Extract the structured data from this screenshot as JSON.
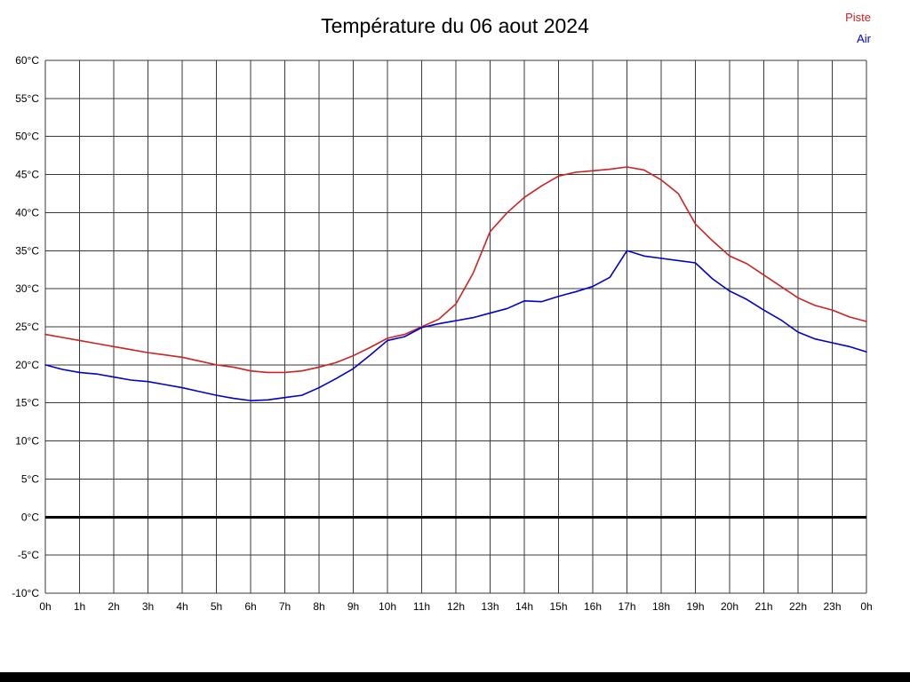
{
  "header": {
    "title": "Température du 06 aout 2024"
  },
  "legend": {
    "items": [
      {
        "label": "Piste",
        "color": "#cc2222"
      },
      {
        "label": "Air",
        "color": "#0000cc"
      }
    ]
  },
  "chart_data": {
    "type": "line",
    "title": "Température du 06 aout 2024",
    "xlabel": "",
    "ylabel": "",
    "xlim": [
      0,
      24
    ],
    "ylim": [
      -10,
      60
    ],
    "grid": true,
    "legend_position": "top-right",
    "zero_line": {
      "value": 0,
      "color": "#000000",
      "width": 3
    },
    "x_ticks": [
      {
        "v": 0,
        "label": "0h"
      },
      {
        "v": 1,
        "label": "1h"
      },
      {
        "v": 2,
        "label": "2h"
      },
      {
        "v": 3,
        "label": "3h"
      },
      {
        "v": 4,
        "label": "4h"
      },
      {
        "v": 5,
        "label": "5h"
      },
      {
        "v": 6,
        "label": "6h"
      },
      {
        "v": 7,
        "label": "7h"
      },
      {
        "v": 8,
        "label": "8h"
      },
      {
        "v": 9,
        "label": "9h"
      },
      {
        "v": 10,
        "label": "10h"
      },
      {
        "v": 11,
        "label": "11h"
      },
      {
        "v": 12,
        "label": "12h"
      },
      {
        "v": 13,
        "label": "13h"
      },
      {
        "v": 14,
        "label": "14h"
      },
      {
        "v": 15,
        "label": "15h"
      },
      {
        "v": 16,
        "label": "16h"
      },
      {
        "v": 17,
        "label": "17h"
      },
      {
        "v": 18,
        "label": "18h"
      },
      {
        "v": 19,
        "label": "19h"
      },
      {
        "v": 20,
        "label": "20h"
      },
      {
        "v": 21,
        "label": "21h"
      },
      {
        "v": 22,
        "label": "22h"
      },
      {
        "v": 23,
        "label": "23h"
      },
      {
        "v": 24,
        "label": "0h"
      }
    ],
    "y_ticks": [
      {
        "v": 60,
        "label": "60°C"
      },
      {
        "v": 55,
        "label": "55°C"
      },
      {
        "v": 50,
        "label": "50°C"
      },
      {
        "v": 45,
        "label": "45°C"
      },
      {
        "v": 40,
        "label": "40°C"
      },
      {
        "v": 35,
        "label": "35°C"
      },
      {
        "v": 30,
        "label": "30°C"
      },
      {
        "v": 25,
        "label": "25°C"
      },
      {
        "v": 20,
        "label": "20°C"
      },
      {
        "v": 15,
        "label": "15°C"
      },
      {
        "v": 10,
        "label": "10°C"
      },
      {
        "v": 5,
        "label": "5°C"
      },
      {
        "v": 0,
        "label": "0°C"
      },
      {
        "v": -5,
        "label": "-5°C"
      },
      {
        "v": -10,
        "label": "-10°C"
      }
    ],
    "x": [
      0,
      0.5,
      1,
      1.5,
      2,
      2.5,
      3,
      3.5,
      4,
      4.5,
      5,
      5.5,
      6,
      6.5,
      7,
      7.5,
      8,
      8.5,
      9,
      9.5,
      10,
      10.5,
      11,
      11.5,
      12,
      12.5,
      13,
      13.5,
      14,
      14.5,
      15,
      15.5,
      16,
      16.5,
      17,
      17.5,
      18,
      18.5,
      19,
      19.5,
      20,
      20.5,
      21,
      21.5,
      22,
      22.5,
      23,
      23.5,
      24
    ],
    "series": [
      {
        "name": "Piste",
        "color": "#cc2222",
        "values": [
          24.0,
          23.6,
          23.2,
          22.8,
          22.4,
          22.0,
          21.6,
          21.3,
          21.0,
          20.5,
          20.0,
          19.7,
          19.2,
          19.0,
          19.0,
          19.2,
          19.7,
          20.3,
          21.2,
          22.3,
          23.5,
          24.0,
          25.0,
          26.0,
          28.0,
          32.0,
          37.5,
          40.0,
          42.0,
          43.5,
          44.8,
          45.3,
          45.5,
          45.7,
          46.0,
          45.6,
          44.3,
          42.5,
          38.5,
          36.3,
          34.3,
          33.3,
          31.8,
          30.3,
          28.8,
          27.8,
          27.2,
          26.3,
          25.7
        ]
      },
      {
        "name": "Air",
        "color": "#0000cc",
        "values": [
          20.0,
          19.4,
          19.0,
          18.8,
          18.4,
          18.0,
          17.8,
          17.4,
          17.0,
          16.5,
          16.0,
          15.6,
          15.3,
          15.4,
          15.7,
          16.0,
          17.0,
          18.2,
          19.5,
          21.3,
          23.2,
          23.7,
          24.9,
          25.4,
          25.8,
          26.2,
          26.8,
          27.4,
          28.4,
          28.3,
          29.0,
          29.6,
          30.3,
          31.5,
          35.0,
          34.3,
          34.0,
          33.7,
          33.4,
          31.3,
          29.7,
          28.6,
          27.2,
          25.9,
          24.3,
          23.4,
          22.9,
          22.4,
          21.7
        ]
      }
    ]
  }
}
